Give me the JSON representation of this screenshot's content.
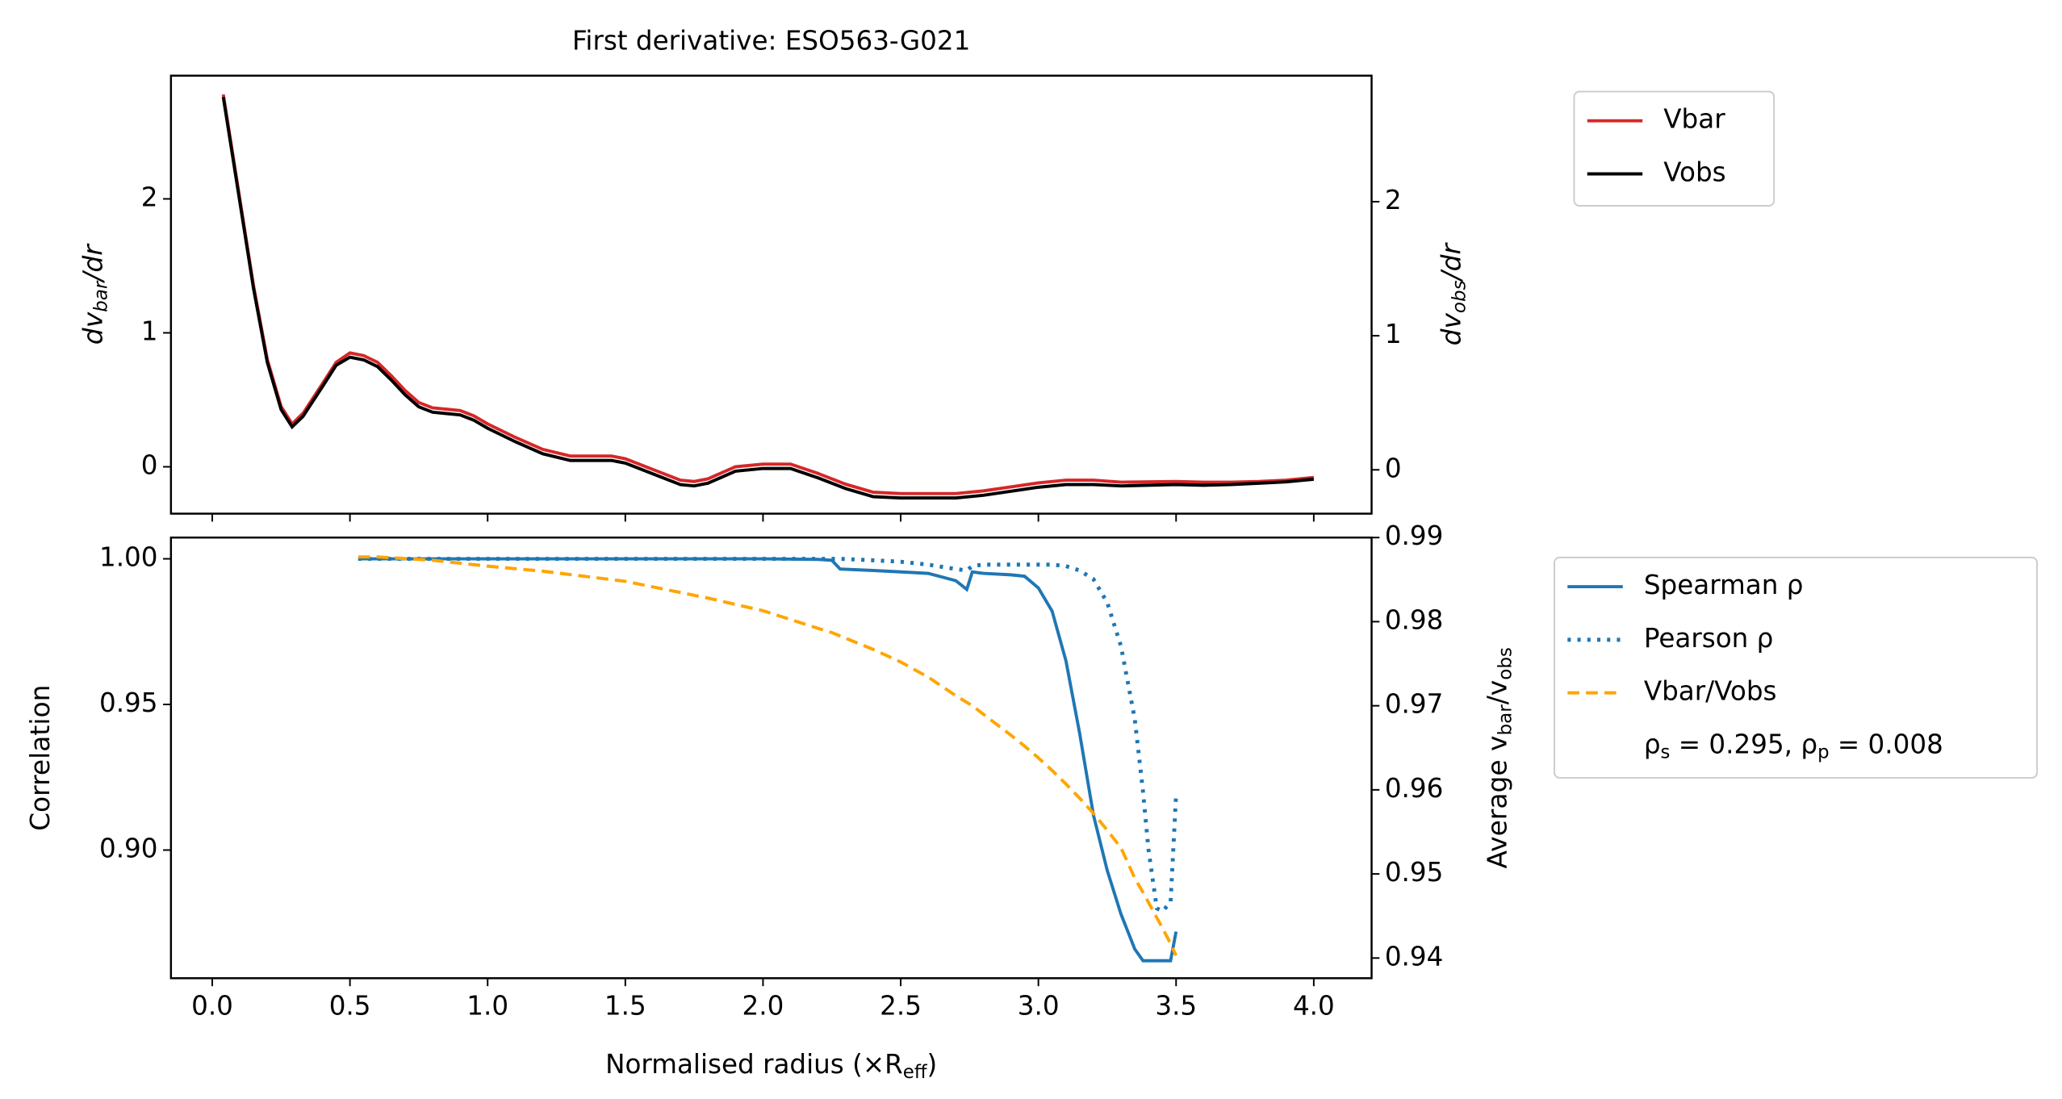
{
  "chart_data": [
    {
      "type": "line",
      "title": "First derivative: ESO563-G021",
      "ylabel": [
        "dv",
        "bar",
        "/dr"
      ],
      "y2label": [
        "dv",
        "obs",
        "/dr"
      ],
      "y_color": "#d62728",
      "y2_color": "#000000",
      "xlim": [
        -0.15,
        4.21
      ],
      "xticks": [
        0,
        0.5,
        1,
        1.5,
        2,
        2.5,
        3,
        3.5,
        4
      ],
      "xtick_labels": false,
      "ylim": [
        -0.35,
        2.92
      ],
      "yticks": [
        0,
        1,
        2
      ],
      "y2lim": [
        -0.327,
        2.94
      ],
      "y2ticks": [
        0,
        1,
        2
      ],
      "x": [
        0.04,
        0.1,
        0.15,
        0.2,
        0.25,
        0.29,
        0.33,
        0.4,
        0.45,
        0.5,
        0.55,
        0.6,
        0.65,
        0.7,
        0.75,
        0.8,
        0.85,
        0.9,
        0.95,
        1.0,
        1.1,
        1.2,
        1.3,
        1.4,
        1.45,
        1.5,
        1.6,
        1.7,
        1.75,
        1.8,
        1.9,
        2.0,
        2.1,
        2.2,
        2.3,
        2.4,
        2.5,
        2.6,
        2.7,
        2.8,
        2.9,
        3.0,
        3.1,
        3.2,
        3.3,
        3.5,
        3.6,
        3.7,
        3.8,
        3.9,
        4.0
      ],
      "series": [
        {
          "name": "Vbar",
          "color": "#d62728",
          "dash": "solid",
          "values": [
            2.78,
            2.0,
            1.35,
            0.8,
            0.45,
            0.32,
            0.4,
            0.62,
            0.78,
            0.85,
            0.83,
            0.78,
            0.68,
            0.57,
            0.48,
            0.44,
            0.43,
            0.42,
            0.38,
            0.32,
            0.22,
            0.13,
            0.08,
            0.08,
            0.08,
            0.06,
            -0.02,
            -0.1,
            -0.11,
            -0.09,
            0.0,
            0.02,
            0.02,
            -0.05,
            -0.13,
            -0.19,
            -0.2,
            -0.2,
            -0.2,
            -0.18,
            -0.15,
            -0.12,
            -0.1,
            -0.1,
            -0.115,
            -0.11,
            -0.115,
            -0.115,
            -0.11,
            -0.1,
            -0.08
          ]
        },
        {
          "name": "Vobs",
          "color": "#000000",
          "dash": "solid",
          "axis": "y2",
          "values": [
            2.78,
            2.0,
            1.35,
            0.8,
            0.45,
            0.32,
            0.4,
            0.62,
            0.78,
            0.84,
            0.82,
            0.77,
            0.67,
            0.56,
            0.47,
            0.43,
            0.42,
            0.41,
            0.37,
            0.31,
            0.21,
            0.12,
            0.07,
            0.07,
            0.07,
            0.05,
            -0.03,
            -0.11,
            -0.12,
            -0.1,
            -0.01,
            0.01,
            0.01,
            -0.06,
            -0.14,
            -0.2,
            -0.21,
            -0.21,
            -0.21,
            -0.19,
            -0.16,
            -0.13,
            -0.11,
            -0.11,
            -0.12,
            -0.11,
            -0.115,
            -0.11,
            -0.1,
            -0.09,
            -0.07
          ]
        }
      ]
    },
    {
      "type": "line",
      "xlabel": [
        "Normalised radius (×R",
        "eff",
        ")"
      ],
      "ylabel": [
        "Correlation"
      ],
      "y2label": [
        "Average v",
        "bar",
        "/v",
        "obs"
      ],
      "y_color": "#1f77b4",
      "y2_color": "#ffa500",
      "annotation": [
        "ρ",
        "s",
        " = 0.295, ρ",
        "p",
        " = 0.008"
      ],
      "xlim": [
        -0.15,
        4.21
      ],
      "xticks": [
        {
          "value": 0,
          "label": "0.0"
        },
        0.5,
        {
          "value": 1,
          "label": "1.0"
        },
        1.5,
        {
          "value": 2,
          "label": "2.0"
        },
        2.5,
        {
          "value": 3,
          "label": "3.0"
        },
        3.5,
        {
          "value": 4,
          "label": "4.0"
        }
      ],
      "xtick_labels": true,
      "ylim": [
        0.856,
        1.0073
      ],
      "yticks": [
        {
          "value": 0.9,
          "label": "0.90"
        },
        0.95,
        {
          "value": 1,
          "label": "1.00"
        }
      ],
      "y2lim": [
        0.9376,
        0.99
      ],
      "y2ticks": [
        0.94,
        0.95,
        0.96,
        0.97,
        0.98,
        0.99
      ],
      "x": [
        0.53,
        0.6,
        0.8,
        1.0,
        1.2,
        1.5,
        1.8,
        2.0,
        2.2,
        2.25,
        2.28,
        2.4,
        2.5,
        2.6,
        2.7,
        2.74,
        2.76,
        2.8,
        2.9,
        2.95,
        3.0,
        3.05,
        3.1,
        3.15,
        3.2,
        3.25,
        3.3,
        3.35,
        3.38,
        3.4,
        3.43,
        3.45,
        3.48,
        3.5
      ],
      "series": [
        {
          "name": "Spearman ρ",
          "color": "#1f77b4",
          "dash": "solid",
          "values": [
            1.0,
            1.0,
            1.0,
            1.0,
            1.0,
            1.0,
            1.0,
            1.0,
            0.9998,
            0.9995,
            0.9965,
            0.996,
            0.9955,
            0.995,
            0.9925,
            0.9895,
            0.9955,
            0.995,
            0.9945,
            0.994,
            0.99,
            0.982,
            0.965,
            0.94,
            0.912,
            0.893,
            0.878,
            0.866,
            0.862,
            0.862,
            0.862,
            0.862,
            0.862,
            0.872
          ]
        },
        {
          "name": "Pearson ρ",
          "color": "#1f77b4",
          "dash": "dotted",
          "values": [
            1.0,
            1.0,
            1.0,
            1.0,
            1.0,
            1.0,
            1.0,
            1.0,
            1.0,
            1.0,
            1.0,
            0.9995,
            0.999,
            0.998,
            0.9965,
            0.996,
            0.9975,
            0.998,
            0.998,
            0.998,
            0.998,
            0.998,
            0.9975,
            0.996,
            0.993,
            0.985,
            0.97,
            0.945,
            0.92,
            0.9,
            0.88,
            0.879,
            0.882,
            0.919
          ]
        },
        {
          "name": "Vbar/Vobs",
          "color": "#ffa500",
          "dash": "dashed",
          "axis": "y2",
          "values": [
            0.9877,
            0.9877,
            0.9873,
            0.9866,
            0.986,
            0.9848,
            0.9828,
            0.9813,
            0.9792,
            0.9787,
            0.9783,
            0.9767,
            0.9752,
            0.9734,
            0.9712,
            0.9704,
            0.97,
            0.969,
            0.9665,
            0.9652,
            0.9638,
            0.9623,
            0.9607,
            0.959,
            0.9572,
            0.9552,
            0.9531,
            0.9495,
            0.9478,
            0.9466,
            0.9448,
            0.9436,
            0.9417,
            0.9403
          ]
        }
      ]
    }
  ]
}
